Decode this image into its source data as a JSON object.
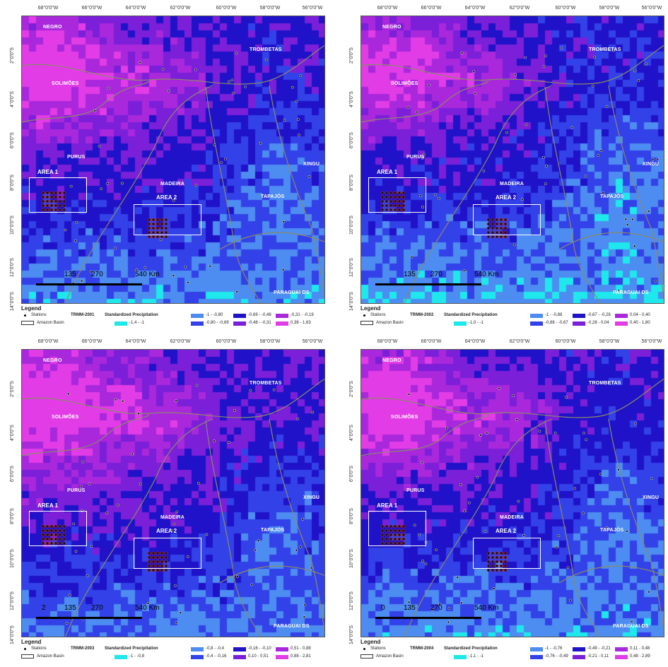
{
  "panels": [
    {
      "product": "TRMM-2001",
      "legend_title": "Standardized Precipitation",
      "classes": [
        "-1,4 - -1",
        "-1 - -0,80",
        "-0,80 - -0,69",
        "-0,69 - -0,48",
        "-0,48 - -0,31",
        "-0,31 - -0,19",
        "0,38 - 1,63"
      ],
      "scale_labels": [
        "135",
        "270",
        "540 Km"
      ]
    },
    {
      "product": "TRMM-2002",
      "legend_title": "Standardized Precipitation",
      "classes": [
        "-1,0 - -1",
        "-1 - -0,88",
        "-0,88 - -0,67",
        "-0,67 - -0,28",
        "-0,28 - 0,04",
        "0,04 - 0,40",
        "0,40 - 1,80"
      ],
      "scale_labels": [
        "135",
        "270",
        "540 Km"
      ]
    },
    {
      "product": "TRMM-2003",
      "legend_title": "Standardized Precipitation",
      "classes": [
        "-1 - -0,8",
        "-0,8 - -0,4",
        "-0,4 - -0,16",
        "-0,16 - -0,10",
        "0,10 - 0,51",
        "0,51 - 0,88",
        "0,88 - 2,81"
      ],
      "scale_labels": [
        "2",
        "135",
        "270",
        "540 Km"
      ]
    },
    {
      "product": "TRMM-2004",
      "legend_title": "Standardized Precipitation",
      "classes": [
        "-1,1 - -1",
        "-1 - -0,76",
        "-0,76 - -0,49",
        "-0,49 - -0,21",
        "-0,21 - 0,11",
        "0,11 - 0,48",
        "0,48 - 2,89"
      ],
      "scale_labels": [
        "0",
        "135",
        "270",
        "540 Km"
      ]
    }
  ],
  "longitudes": [
    "68°0'0\"W",
    "66°0'0\"W",
    "64°0'0\"W",
    "62°0'0\"W",
    "60°0'0\"W",
    "58°0'0\"W",
    "56°0'0\"W"
  ],
  "latitudes": [
    "2°0'0\"S",
    "4°0'0\"S",
    "6°0'0\"S",
    "8°0'0\"S",
    "10°0'0\"S",
    "12°0'0\"S",
    "14°0'0\"S"
  ],
  "regions": {
    "negro": "NEGRO",
    "solimoes": "SOLIMÕES",
    "purus": "PURUS",
    "madeira": "MADEIRA",
    "trombetas": "TROMBETAS",
    "tapajos": "TAPAJÓS",
    "xingu": "XINGU",
    "paraguai": "PARAGUAI DS"
  },
  "areas": {
    "area1": "AREA 1",
    "area2": "AREA 2"
  },
  "legend": {
    "title": "Legend",
    "stations": "Stations",
    "basin": "Amazon Basin"
  },
  "colors": {
    "cyan": "#1ee8ec",
    "light_blue": "#4d8cf0",
    "blue": "#3341e8",
    "deep_blue": "#1f12c8",
    "violet": "#7b1fd8",
    "purple": "#a928dc",
    "magenta": "#e23ce6"
  }
}
